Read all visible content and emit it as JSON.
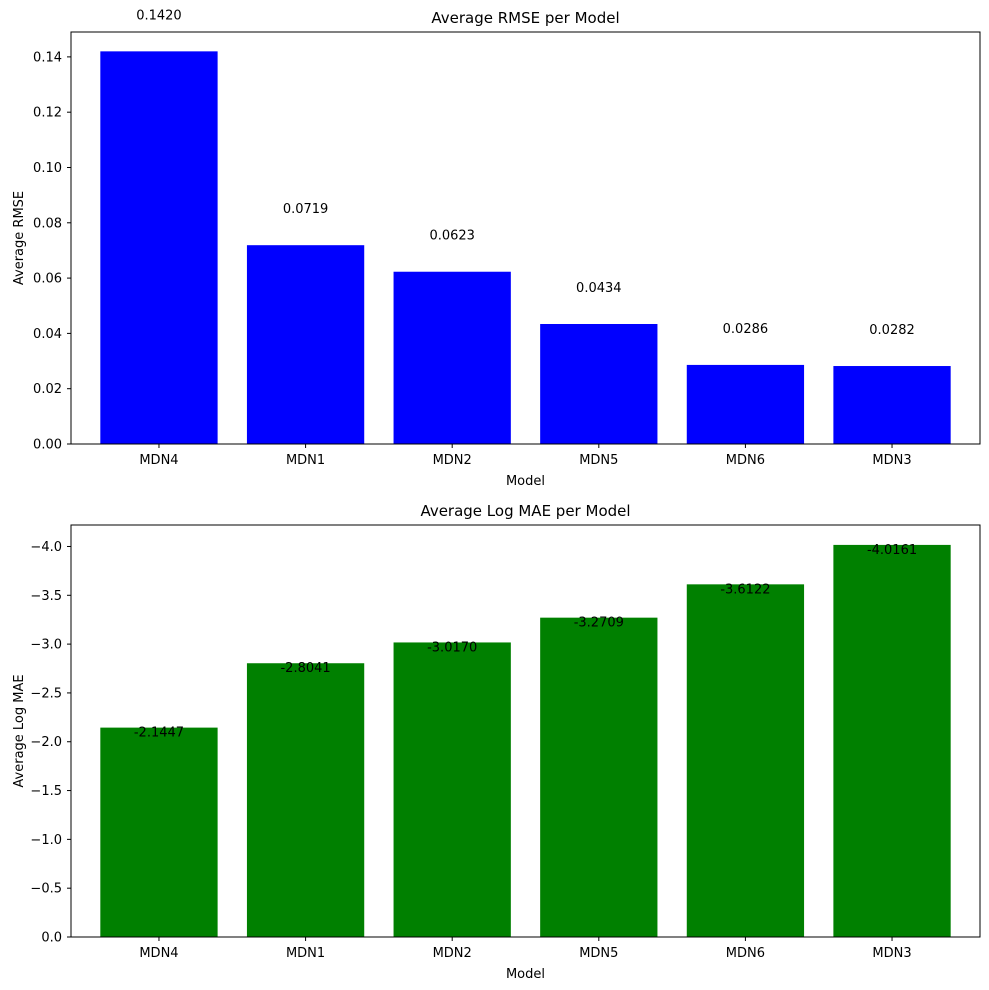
{
  "chart_data": [
    {
      "type": "bar",
      "title": "Average RMSE per Model",
      "xlabel": "Model",
      "ylabel": "Average RMSE",
      "categories": [
        "MDN4",
        "MDN1",
        "MDN2",
        "MDN5",
        "MDN6",
        "MDN3"
      ],
      "values": [
        0.142,
        0.0719,
        0.0623,
        0.0434,
        0.0286,
        0.0282
      ],
      "value_labels": [
        "0.1420",
        "0.0719",
        "0.0623",
        "0.0434",
        "0.0286",
        "0.0282"
      ],
      "ylim": [
        0,
        0.149
      ],
      "yticks": [
        0.0,
        0.02,
        0.04,
        0.06,
        0.08,
        0.1,
        0.12,
        0.14
      ],
      "ytick_labels": [
        "0.00",
        "0.02",
        "0.04",
        "0.06",
        "0.08",
        "0.10",
        "0.12",
        "0.14"
      ],
      "color": "#0000ff",
      "label_position": "above"
    },
    {
      "type": "bar",
      "title": "Average Log MAE per Model",
      "xlabel": "Model",
      "ylabel": "Average Log MAE",
      "categories": [
        "MDN4",
        "MDN1",
        "MDN2",
        "MDN5",
        "MDN6",
        "MDN3"
      ],
      "values": [
        -2.1447,
        -2.8041,
        -3.017,
        -3.2709,
        -3.6122,
        -4.0161
      ],
      "value_labels": [
        "-2.1447",
        "-2.8041",
        "-3.0170",
        "-3.2709",
        "-3.6122",
        "-4.0161"
      ],
      "ylim": [
        0,
        -4.22
      ],
      "inverted_y": true,
      "yticks": [
        0.0,
        -0.5,
        -1.0,
        -1.5,
        -2.0,
        -2.5,
        -3.0,
        -3.5,
        -4.0
      ],
      "ytick_labels": [
        "0.0",
        "−0.5",
        "−1.0",
        "−1.5",
        "−2.0",
        "−2.5",
        "−3.0",
        "−3.5",
        "−4.0"
      ],
      "color": "#008000",
      "label_position": "inside-top"
    }
  ]
}
